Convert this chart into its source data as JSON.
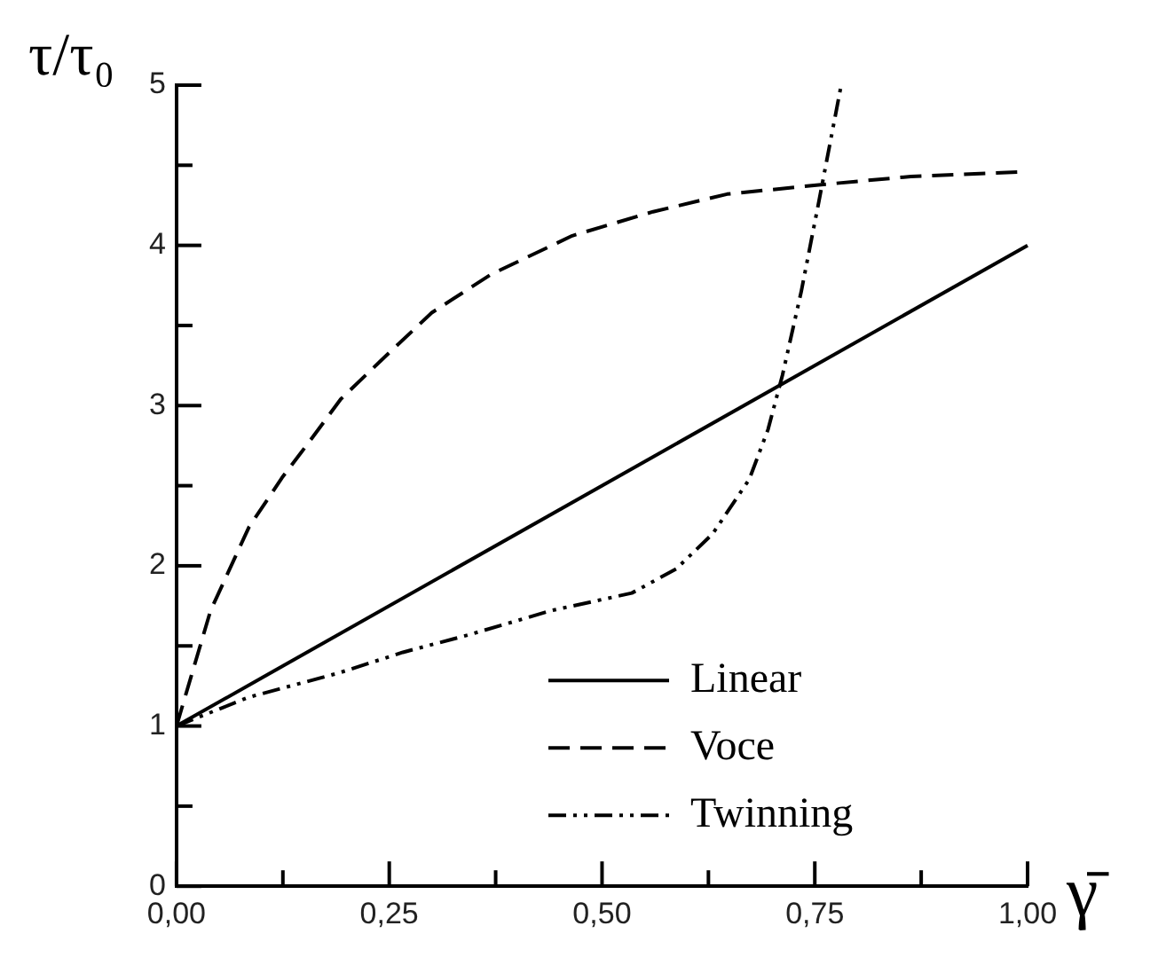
{
  "chart_data": {
    "type": "line",
    "xlabel": "γ̄",
    "ylabel": "τ/τ₀",
    "xlim": [
      0,
      1
    ],
    "ylim": [
      0,
      5
    ],
    "xticks": [
      {
        "value": 0,
        "label": "0,00"
      },
      {
        "value": 0.125,
        "label": null
      },
      {
        "value": 0.25,
        "label": "0,25"
      },
      {
        "value": 0.375,
        "label": null
      },
      {
        "value": 0.5,
        "label": "0,50"
      },
      {
        "value": 0.625,
        "label": null
      },
      {
        "value": 0.75,
        "label": "0,75"
      },
      {
        "value": 0.875,
        "label": null
      },
      {
        "value": 1,
        "label": "1,00"
      }
    ],
    "yticks": [
      0,
      {
        "value": 0.5,
        "label": null
      },
      1,
      {
        "value": 1.5,
        "label": null
      },
      2,
      {
        "value": 2.5,
        "label": null
      },
      3,
      {
        "value": 3.5,
        "label": null
      },
      4,
      {
        "value": 4.5,
        "label": null
      },
      5
    ],
    "grid": false,
    "legend": "bottom right",
    "marker": "none",
    "series": [
      {
        "name": "Linear",
        "color": "#000000",
        "line_style": "solid",
        "x": [
          0,
          1
        ],
        "values": [
          1,
          4
        ]
      },
      {
        "name": "Voce",
        "color": "#000000",
        "line_style": "dashed",
        "x": [
          0,
          0.04,
          0.085,
          0.124,
          0.154,
          0.193,
          0.24,
          0.3,
          0.37,
          0.465,
          0.56,
          0.647,
          0.76,
          0.863,
          1
        ],
        "values": [
          1,
          1.72,
          2.24,
          2.55,
          2.76,
          3.04,
          3.28,
          3.58,
          3.82,
          4.06,
          4.21,
          4.32,
          4.38,
          4.43,
          4.46
        ]
      },
      {
        "name": "Twinning",
        "color": "#000000",
        "line_style": "dotted",
        "x": [
          0,
          0.085,
          0.19,
          0.266,
          0.344,
          0.44,
          0.535,
          0.587,
          0.63,
          0.673,
          0.695,
          0.712,
          0.734,
          0.755,
          0.781
        ],
        "values": [
          1,
          1.18,
          1.33,
          1.46,
          1.57,
          1.72,
          1.83,
          1.98,
          2.2,
          2.54,
          2.85,
          3.19,
          3.71,
          4.28,
          5
        ]
      }
    ]
  }
}
